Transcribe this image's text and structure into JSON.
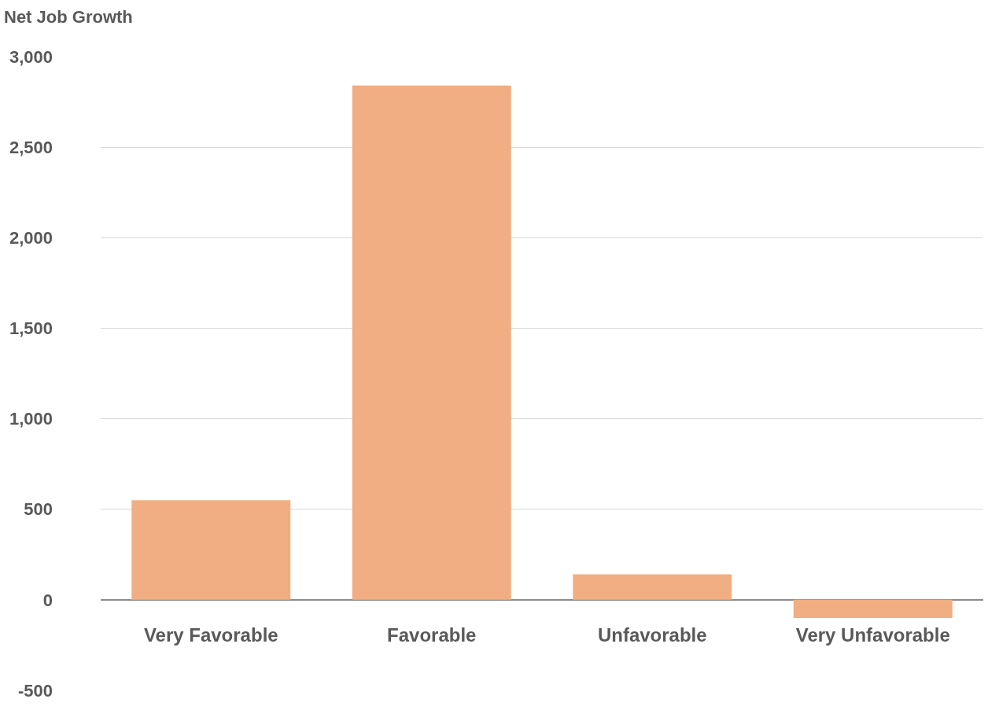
{
  "chart_data": {
    "type": "bar",
    "title": "Net Job Growth",
    "categories": [
      "Very Favorable",
      "Favorable",
      "Unfavorable",
      "Very Unfavorable"
    ],
    "values": [
      550,
      2840,
      140,
      -100
    ],
    "color": "#f0ae82",
    "ylim": [
      -500,
      3000
    ],
    "yticks": [
      {
        "value": -500,
        "label": "-500"
      },
      0,
      500,
      {
        "value": 1000,
        "label": "1,000"
      },
      {
        "value": 1500,
        "label": "1,500"
      },
      {
        "value": 2000,
        "label": "2,000"
      },
      {
        "value": 2500,
        "label": "2,500"
      },
      {
        "value": 3000,
        "label": "3,000"
      }
    ],
    "grid": "y"
  }
}
